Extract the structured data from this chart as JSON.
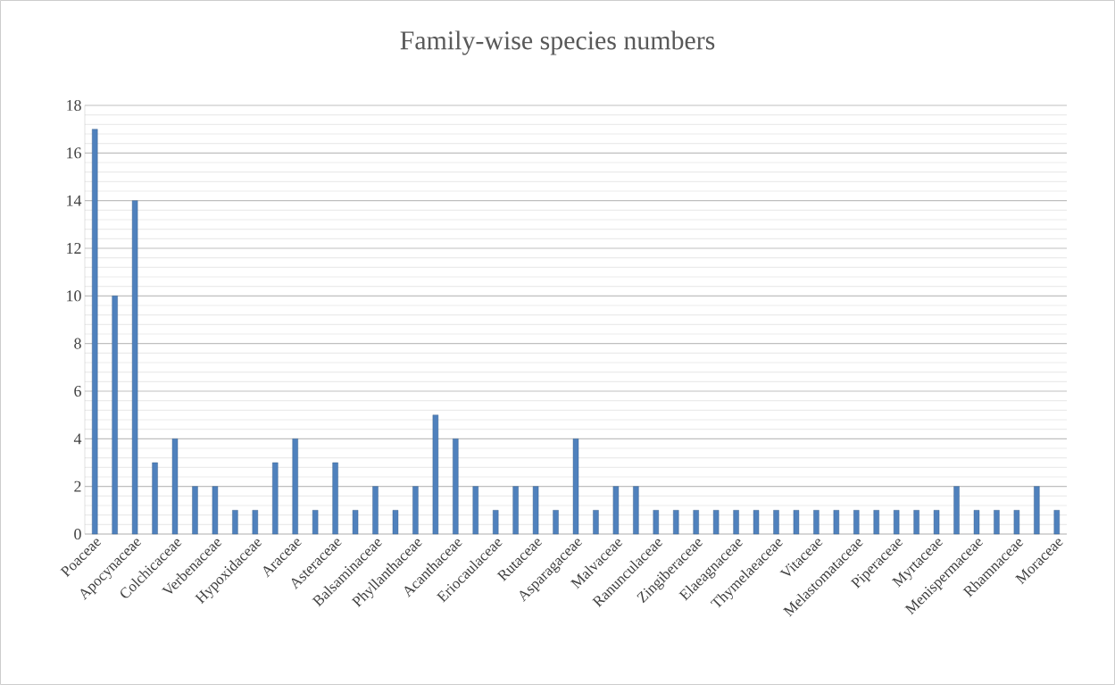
{
  "chart_data": {
    "type": "bar",
    "title": "Family-wise species numbers",
    "categories": [
      "Poaceae",
      null,
      "Apocynaceae",
      null,
      "Colchicaceae",
      null,
      "Verbenaceae",
      null,
      "Hypoxidaceae",
      null,
      "Araceae",
      null,
      "Asteraceae",
      null,
      "Balsaminaceae",
      null,
      "Phyllanthaceae",
      null,
      "Acanthaceae",
      null,
      "Eriocaulaceae",
      null,
      "Rutaceae",
      null,
      "Asparagaceae",
      null,
      "Malvaceae",
      null,
      "Ranunculaceae",
      null,
      "Zingiberaceae",
      null,
      "Elaeagnaceae",
      null,
      "Thymelaeaceae",
      null,
      "Vitaceae",
      null,
      "Melastomataceae",
      null,
      "Piperaceae",
      null,
      "Myrtaceae",
      null,
      "Menispermaceae",
      null,
      "Rhamnaceae",
      null,
      "Moraceae"
    ],
    "values": [
      17,
      10,
      14,
      3,
      4,
      2,
      2,
      1,
      1,
      3,
      4,
      1,
      3,
      1,
      2,
      1,
      2,
      5,
      4,
      2,
      1,
      2,
      2,
      1,
      4,
      1,
      2,
      2,
      1,
      1,
      1,
      1,
      1,
      1,
      1,
      1,
      1,
      1,
      1,
      1,
      1,
      1,
      1,
      2,
      1,
      1,
      1,
      2,
      1
    ],
    "color": "#4f81bd",
    "ylim": [
      0,
      18
    ],
    "yticks": [
      0,
      2,
      4,
      6,
      8,
      10,
      12,
      14,
      16,
      18
    ],
    "grid": "y"
  }
}
